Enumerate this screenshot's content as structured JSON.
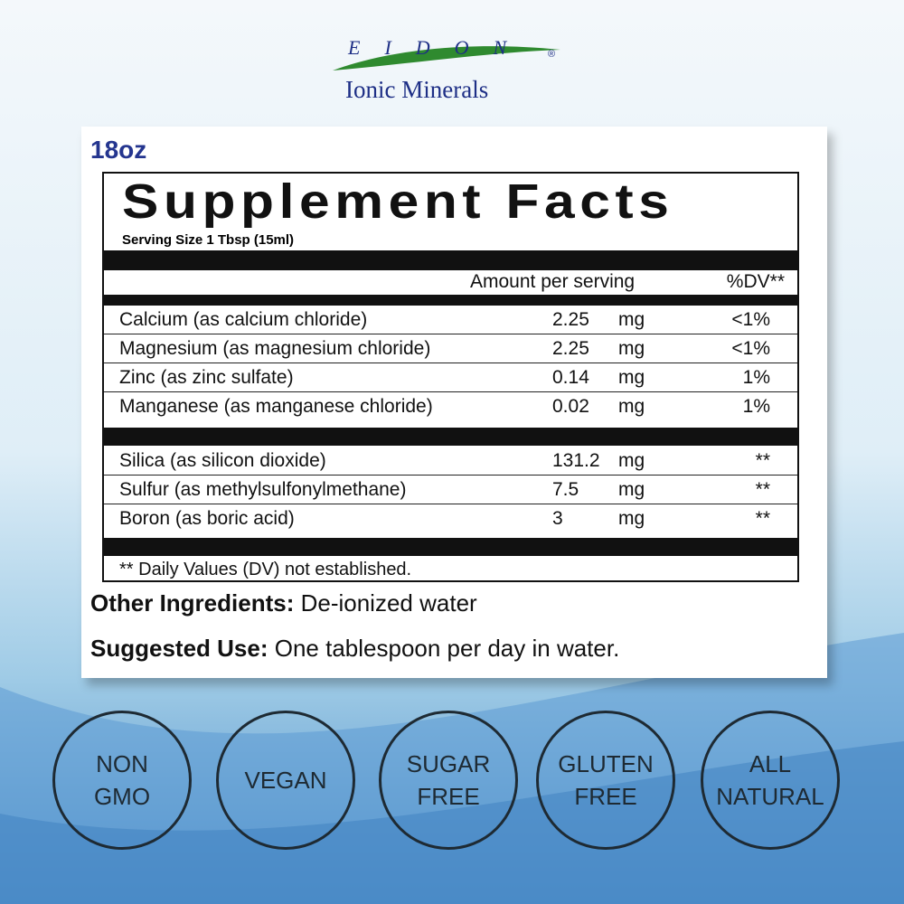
{
  "brand": {
    "name": "EIDON",
    "mark": "®",
    "subtitle": "Ionic Minerals"
  },
  "label": {
    "size": "18oz",
    "title": "Supplement Facts",
    "serving": "Serving Size 1 Tbsp (15ml)",
    "header": {
      "amount": "Amount per serving",
      "dv": "%DV**"
    },
    "groups": [
      [
        [
          "Calcium (as calcium chloride)",
          "2.25",
          "mg",
          "<1%"
        ],
        [
          "Magnesium (as magnesium chloride)",
          "2.25",
          "mg",
          "<1%"
        ],
        [
          "Zinc (as zinc sulfate)",
          "0.14",
          "mg",
          "1%"
        ],
        [
          "Manganese (as manganese chloride)",
          "0.02",
          "mg",
          "1%"
        ]
      ],
      [
        [
          "Silica (as silicon dioxide)",
          "131.2",
          "mg",
          "**"
        ],
        [
          "Sulfur (as methylsulfonylmethane)",
          "7.5",
          "mg",
          "**"
        ],
        [
          "Boron (as boric acid)",
          "3",
          "mg",
          "**"
        ]
      ]
    ],
    "footnote": "** Daily Values (DV) not established.",
    "other": {
      "label": "Other Ingredients:",
      "text": "De-ionized water"
    },
    "use": {
      "label": "Suggested Use:",
      "text": "One tablespoon per day in water."
    }
  },
  "badges": [
    [
      "NON",
      "GMO"
    ],
    [
      "VEGAN"
    ],
    [
      "SUGAR",
      "FREE"
    ],
    [
      "GLUTEN",
      "FREE"
    ],
    [
      "ALL",
      "NATURAL"
    ]
  ]
}
